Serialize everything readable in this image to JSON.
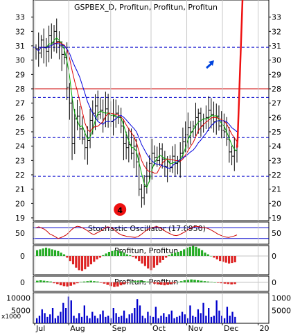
{
  "chart_data": [
    {
      "type": "candlestick",
      "title": "GSPBEX_D, Profitun, Profitun, Profitun",
      "ylim": [
        19,
        34
      ],
      "y_ticks": [
        19,
        20,
        21,
        22,
        23,
        24,
        25,
        26,
        27,
        28,
        29,
        30,
        31,
        32,
        33
      ],
      "x_labels": [
        "Jul",
        "Aug",
        "Sep",
        "Oct",
        "Nov",
        "Dec",
        "20"
      ],
      "x_label_day": [
        0,
        22,
        49,
        75,
        98,
        121,
        144
      ],
      "horizontal_levels": [
        {
          "value": 30.9,
          "style": "dashed",
          "color": "#0000cc"
        },
        {
          "value": 28.0,
          "style": "solid",
          "color": "#cc0000"
        },
        {
          "value": 27.4,
          "style": "dashed",
          "color": "#0000cc"
        },
        {
          "value": 24.6,
          "style": "dashed",
          "color": "#0000cc"
        },
        {
          "value": 21.9,
          "style": "dashed",
          "color": "#0000cc"
        }
      ],
      "close": [
        30.8,
        30.5,
        31.4,
        30.9,
        30.6,
        31.7,
        31.2,
        32.0,
        31.3,
        31.0,
        30.4,
        30.2,
        28.1,
        27.0,
        24.2,
        25.9,
        26.1,
        25.2,
        24.5,
        23.9,
        24.4,
        25.8,
        26.3,
        26.8,
        26.2,
        26.5,
        25.9,
        26.6,
        26.3,
        25.7,
        26.1,
        26.3,
        26.0,
        25.4,
        24.2,
        23.9,
        24.1,
        23.5,
        24.0,
        22.9,
        21.0,
        20.4,
        21.2,
        21.9,
        22.8,
        23.5,
        23.2,
        23.0,
        23.8,
        23.1,
        22.6,
        22.9,
        22.5,
        23.3,
        22.8,
        22.9,
        23.5,
        24.3,
        24.8,
        25.3,
        25.0,
        25.4,
        26.0,
        26.3,
        25.4,
        25.9,
        26.0,
        26.5,
        26.2,
        25.7,
        26.1,
        25.4,
        25.1,
        25.0,
        24.5,
        23.6,
        23.3,
        23.7,
        24.0
      ],
      "projection": {
        "from": 23.9,
        "to": 34.0,
        "color": "#ee1111"
      },
      "moving_averages": [
        {
          "color": "#00aa00",
          "period": 4
        },
        {
          "color": "#dd0000",
          "period": 8
        },
        {
          "color": "#0000dd",
          "period": 13
        }
      ],
      "annotations": [
        {
          "type": "marker",
          "label": "4",
          "color": "#ee1111",
          "day": 55
        },
        {
          "type": "arrow",
          "direction": "up-right",
          "color": "#0044dd"
        }
      ]
    },
    {
      "type": "line",
      "title": "Stochastic Oscillator (17.8950)",
      "y_ticks": [
        50
      ],
      "levels": [
        80,
        20
      ],
      "series_color": "#cc0000",
      "values": [
        80,
        85,
        78,
        72,
        60,
        45,
        38,
        30,
        20,
        25,
        32,
        40,
        55,
        70,
        82,
        88,
        85,
        78,
        70,
        60,
        48,
        42,
        50,
        58,
        66,
        78,
        85,
        82,
        75,
        60,
        48,
        40,
        36,
        32,
        30,
        28,
        26,
        30,
        40,
        52,
        64,
        74,
        80,
        84,
        86,
        80,
        70,
        60,
        52,
        44,
        38,
        36,
        40,
        48,
        56,
        66,
        76,
        84,
        88,
        86,
        82,
        80,
        78,
        72,
        64,
        55,
        45,
        38,
        32,
        28,
        26,
        30,
        34,
        40
      ]
    },
    {
      "type": "bar",
      "title": "Profitun, Profitun",
      "y_ticks": [
        0
      ],
      "colors": {
        "positive": "#22aa22",
        "negative": "#dd2222"
      },
      "values": [
        0.35,
        0.4,
        0.45,
        0.5,
        0.45,
        0.4,
        0.35,
        0.3,
        0.2,
        0.1,
        -0.1,
        -0.3,
        -0.5,
        -0.7,
        -0.85,
        -0.9,
        -0.8,
        -0.65,
        -0.5,
        -0.35,
        -0.2,
        -0.1,
        0.05,
        0.15,
        0.25,
        0.3,
        0.35,
        0.32,
        0.28,
        0.2,
        0.1,
        0.05,
        -0.05,
        -0.15,
        -0.3,
        -0.45,
        -0.6,
        -0.75,
        -0.85,
        -0.7,
        -0.55,
        -0.4,
        -0.25,
        -0.1,
        0.05,
        0.15,
        0.2,
        0.25,
        0.3,
        0.4,
        0.5,
        0.55,
        0.6,
        0.55,
        0.45,
        0.35,
        0.2,
        0.1,
        0.0,
        -0.1,
        -0.2,
        -0.3,
        -0.35,
        -0.4,
        -0.45,
        -0.42,
        -0.38
      ]
    },
    {
      "type": "bar",
      "title": "Profitun, Profitun",
      "y_ticks": [
        0
      ],
      "colors": {
        "positive": "#22aa22",
        "negative": "#dd2222"
      },
      "values": [
        0.2,
        0.25,
        0.2,
        0.15,
        0.1,
        -0.1,
        -0.2,
        -0.35,
        -0.45,
        -0.5,
        -0.4,
        -0.25,
        -0.1,
        0.05,
        0.1,
        0.15,
        0.2,
        0.15,
        0.1,
        -0.05,
        -0.15,
        -0.3,
        -0.45,
        -0.55,
        -0.5,
        -0.35,
        -0.2,
        -0.05,
        0.1,
        0.15,
        0.2,
        0.2,
        0.15,
        0.1,
        -0.05,
        -0.15,
        -0.25,
        -0.3,
        -0.35,
        -0.3,
        -0.2,
        -0.1,
        0.05,
        0.15,
        0.25,
        0.3,
        0.35,
        0.3,
        0.25,
        0.2,
        0.15,
        0.1,
        0.05,
        0.0,
        -0.05,
        -0.1,
        -0.15,
        -0.2,
        -0.25,
        -0.2
      ]
    },
    {
      "type": "bar",
      "title": "",
      "unit_label": "x1000",
      "y_ticks": [
        5000,
        10000
      ],
      "color": "#0000cc",
      "values": [
        2000,
        3000,
        5500,
        4000,
        2500,
        3500,
        6000,
        2000,
        3000,
        4500,
        8000,
        6000,
        10500,
        9000,
        3000,
        2000,
        4000,
        2500,
        7000,
        3000,
        2000,
        4500,
        3000,
        2000,
        3500,
        5000,
        2500,
        3000,
        2000,
        6000,
        4000,
        2500,
        3000,
        5000,
        2000,
        3500,
        4000,
        6000,
        9500,
        7000,
        3000,
        2000,
        4500,
        3000,
        2500,
        6500,
        2000,
        3000,
        4000,
        2500,
        3500,
        5000,
        2000,
        2500,
        3000,
        4500,
        3500,
        2000,
        7000,
        3000,
        2500,
        5500,
        4000,
        8000,
        3000,
        6000,
        2500,
        3000,
        9000,
        5000,
        3000,
        2000,
        6500,
        3000,
        4500,
        2500
      ]
    }
  ]
}
